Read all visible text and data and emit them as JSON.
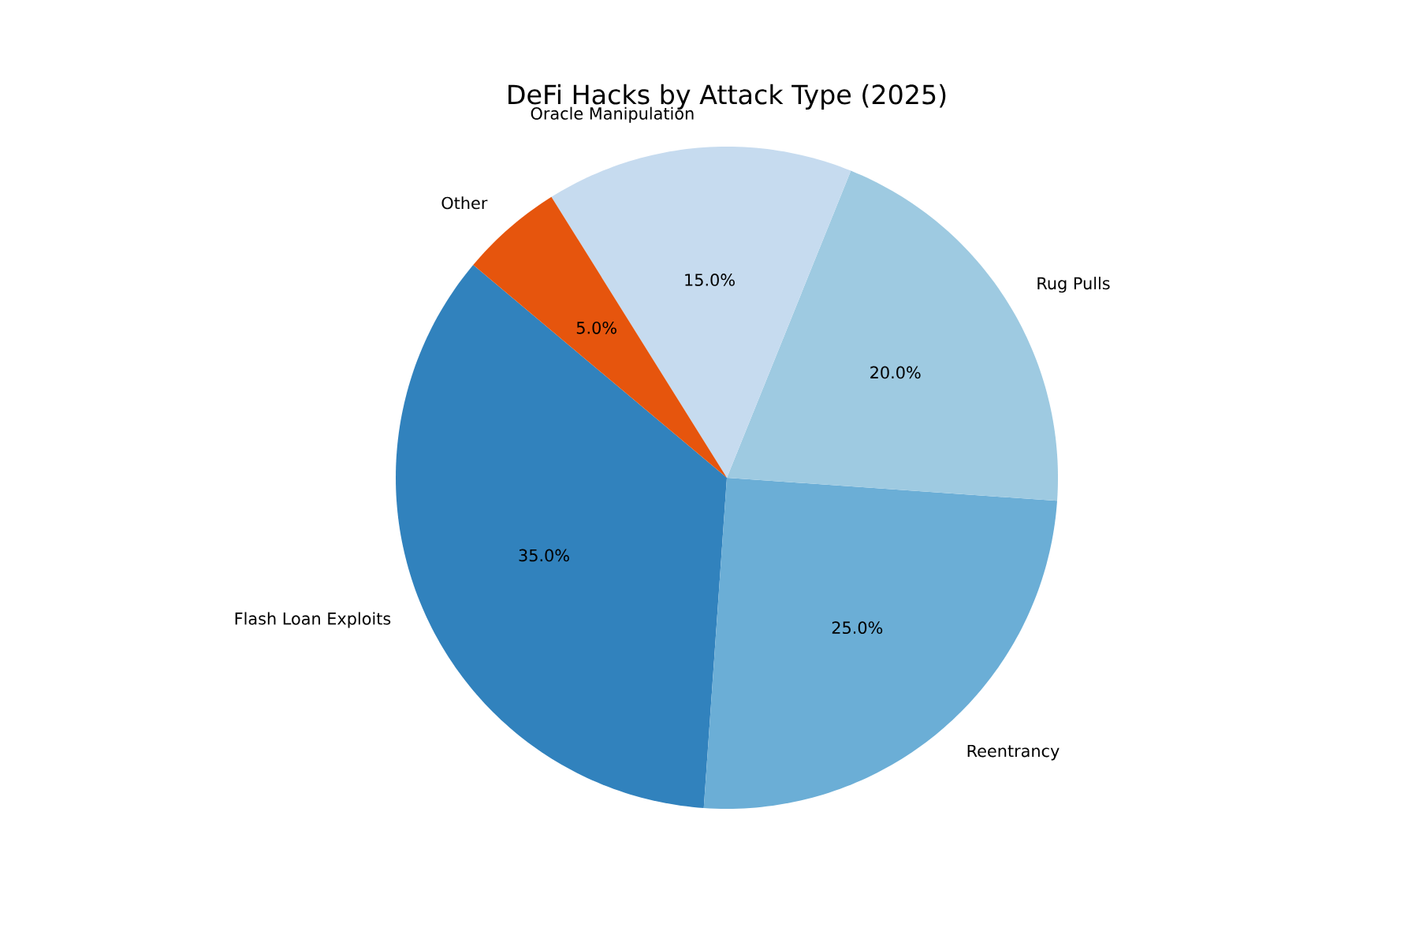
{
  "chart_data": {
    "type": "pie",
    "title": "DeFi Hacks by Attack Type (2025)",
    "categories": [
      "Flash Loan Exploits",
      "Reentrancy",
      "Rug Pulls",
      "Oracle Manipulation",
      "Other"
    ],
    "values": [
      35,
      25,
      20,
      15,
      5
    ],
    "value_labels": [
      "35.0%",
      "25.0%",
      "20.0%",
      "15.0%",
      "5.0%"
    ],
    "colors": [
      "#3182bd",
      "#6baed6",
      "#9ecae1",
      "#c6dbef",
      "#e6550d"
    ]
  }
}
